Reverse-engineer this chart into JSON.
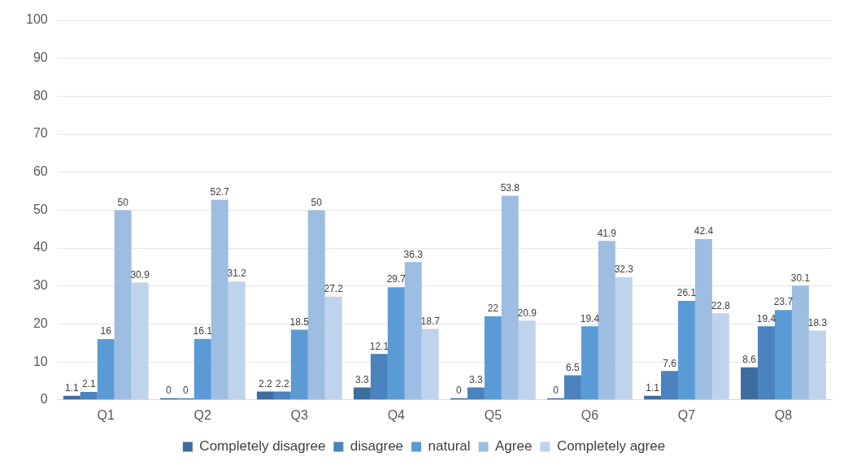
{
  "chart_data": {
    "type": "bar",
    "categories": [
      "Q1",
      "Q2",
      "Q3",
      "Q4",
      "Q5",
      "Q6",
      "Q7",
      "Q8"
    ],
    "series": [
      {
        "name": "Completely disagree",
        "color": "#3d6d9e",
        "values": [
          1.1,
          0,
          2.2,
          3.3,
          0,
          0,
          1.1,
          8.6
        ]
      },
      {
        "name": "disagree",
        "color": "#4a83bd",
        "values": [
          2.1,
          0,
          2.2,
          12.1,
          3.3,
          6.5,
          7.6,
          19.4
        ]
      },
      {
        "name": "natural",
        "color": "#5b9bd5",
        "values": [
          16,
          16.1,
          18.5,
          29.7,
          22,
          19.4,
          26.1,
          23.7
        ]
      },
      {
        "name": "Agree",
        "color": "#9dbde3",
        "values": [
          50,
          52.7,
          50,
          36.3,
          53.8,
          41.9,
          42.4,
          30.1
        ]
      },
      {
        "name": "Completely agree",
        "color": "#bfd3ec",
        "values": [
          30.9,
          31.2,
          27.2,
          18.7,
          20.9,
          32.3,
          22.8,
          18.3
        ]
      }
    ],
    "ylim": [
      0,
      100
    ],
    "yticks": [
      0,
      10,
      20,
      30,
      40,
      50,
      60,
      70,
      80,
      90,
      100
    ],
    "grid": "y",
    "legend": "bottom",
    "data_labels": true
  }
}
